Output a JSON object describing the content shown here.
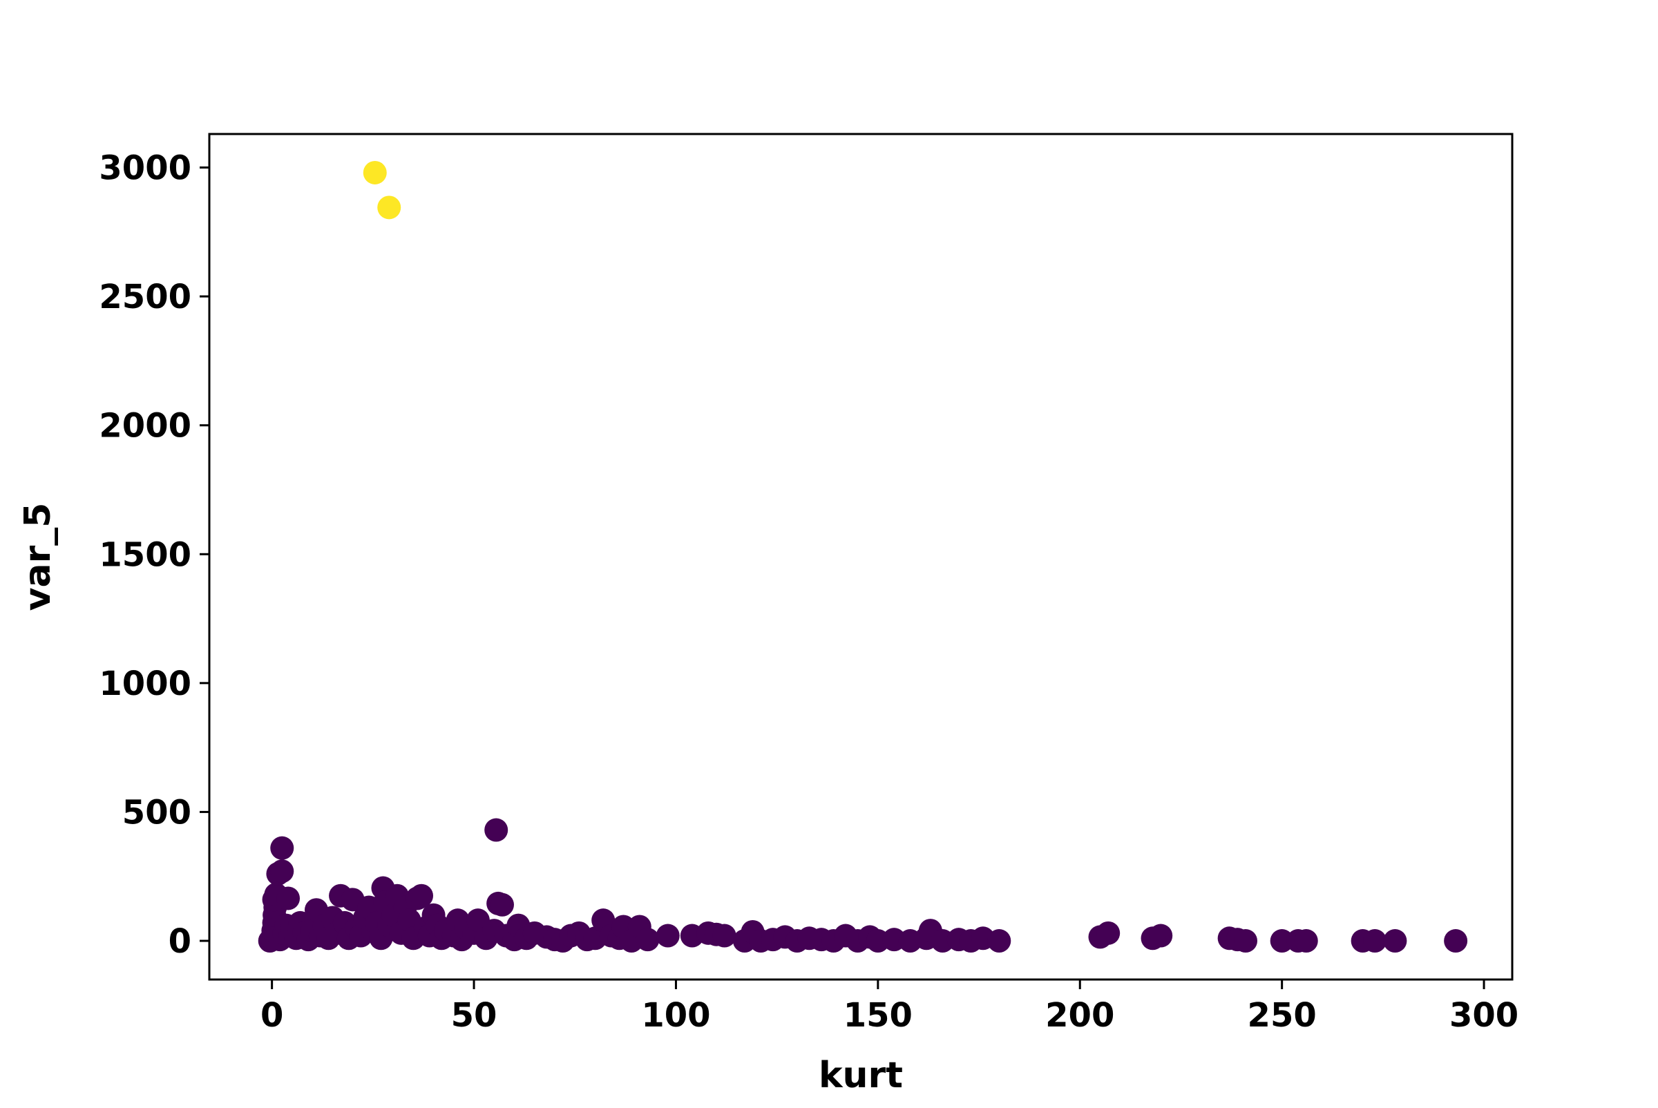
{
  "chart_data": {
    "type": "scatter",
    "title": "",
    "xlabel": "kurt",
    "ylabel": "var_5",
    "xlim": [
      -15.5,
      307
    ],
    "ylim": [
      -150,
      3130
    ],
    "x_ticks": [
      0,
      50,
      100,
      150,
      200,
      250,
      300
    ],
    "y_ticks": [
      0,
      500,
      1000,
      1500,
      2000,
      2500,
      3000
    ],
    "x_tick_labels": [
      "0",
      "50",
      "100",
      "150",
      "200",
      "250",
      "300"
    ],
    "y_tick_labels": [
      "0",
      "500",
      "1000",
      "1500",
      "2000",
      "2500",
      "3000"
    ],
    "grid": false,
    "legend": "none",
    "colors": {
      "cluster_0": "#440154",
      "cluster_1": "#fde725"
    },
    "series": [
      {
        "color_key": "cluster_0",
        "points": [
          [
            -0.5,
            0
          ],
          [
            0,
            10
          ],
          [
            0.3,
            40
          ],
          [
            0.5,
            70
          ],
          [
            0.6,
            100
          ],
          [
            0.8,
            130
          ],
          [
            0.5,
            160
          ],
          [
            1,
            180
          ],
          [
            1.5,
            260
          ],
          [
            2,
            5
          ],
          [
            2.5,
            270
          ],
          [
            2.5,
            360
          ],
          [
            3,
            30
          ],
          [
            3.5,
            60
          ],
          [
            4,
            165
          ],
          [
            4.5,
            20
          ],
          [
            5,
            50
          ],
          [
            6,
            10
          ],
          [
            7,
            70
          ],
          [
            8,
            30
          ],
          [
            9,
            5
          ],
          [
            10,
            40
          ],
          [
            11,
            120
          ],
          [
            12,
            20
          ],
          [
            13,
            60
          ],
          [
            14,
            10
          ],
          [
            15,
            90
          ],
          [
            16,
            30
          ],
          [
            17,
            175
          ],
          [
            18,
            70
          ],
          [
            19,
            10
          ],
          [
            20,
            160
          ],
          [
            21,
            50
          ],
          [
            22,
            20
          ],
          [
            23,
            90
          ],
          [
            24,
            130
          ],
          [
            25,
            40
          ],
          [
            26,
            70
          ],
          [
            27,
            10
          ],
          [
            27.5,
            205
          ],
          [
            28,
            150
          ],
          [
            29,
            60
          ],
          [
            30,
            100
          ],
          [
            31,
            175
          ],
          [
            32,
            30
          ],
          [
            33,
            130
          ],
          [
            34,
            80
          ],
          [
            35,
            10
          ],
          [
            36,
            165
          ],
          [
            37,
            175
          ],
          [
            38,
            50
          ],
          [
            39,
            20
          ],
          [
            40,
            100
          ],
          [
            41,
            60
          ],
          [
            42,
            10
          ],
          [
            43,
            40
          ],
          [
            45,
            20
          ],
          [
            46,
            80
          ],
          [
            47,
            5
          ],
          [
            48,
            50
          ],
          [
            50,
            30
          ],
          [
            51,
            80
          ],
          [
            53,
            10
          ],
          [
            55,
            40
          ],
          [
            55.5,
            430
          ],
          [
            56,
            145
          ],
          [
            57,
            140
          ],
          [
            58,
            20
          ],
          [
            60,
            5
          ],
          [
            61,
            60
          ],
          [
            63,
            10
          ],
          [
            65,
            30
          ],
          [
            68,
            15
          ],
          [
            70,
            5
          ],
          [
            72,
            0
          ],
          [
            74,
            20
          ],
          [
            76,
            30
          ],
          [
            78,
            5
          ],
          [
            80,
            10
          ],
          [
            82,
            80
          ],
          [
            84,
            20
          ],
          [
            86,
            10
          ],
          [
            87,
            55
          ],
          [
            89,
            0
          ],
          [
            91,
            55
          ],
          [
            93,
            5
          ],
          [
            98,
            20
          ],
          [
            104,
            20
          ],
          [
            108,
            30
          ],
          [
            110,
            25
          ],
          [
            112,
            20
          ],
          [
            117,
            0
          ],
          [
            119,
            35
          ],
          [
            121,
            0
          ],
          [
            124,
            5
          ],
          [
            127,
            15
          ],
          [
            130,
            0
          ],
          [
            133,
            10
          ],
          [
            136,
            5
          ],
          [
            139,
            0
          ],
          [
            142,
            20
          ],
          [
            145,
            0
          ],
          [
            148,
            15
          ],
          [
            150,
            0
          ],
          [
            154,
            5
          ],
          [
            158,
            0
          ],
          [
            162,
            10
          ],
          [
            163,
            40
          ],
          [
            166,
            0
          ],
          [
            170,
            5
          ],
          [
            173,
            0
          ],
          [
            176,
            10
          ],
          [
            180,
            0
          ],
          [
            205,
            15
          ],
          [
            207,
            30
          ],
          [
            218,
            10
          ],
          [
            220,
            20
          ],
          [
            237,
            10
          ],
          [
            239,
            5
          ],
          [
            241,
            0
          ],
          [
            250,
            0
          ],
          [
            254,
            0
          ],
          [
            256,
            0
          ],
          [
            270,
            0
          ],
          [
            273,
            0
          ],
          [
            278,
            0
          ],
          [
            293,
            0
          ]
        ]
      },
      {
        "color_key": "cluster_1",
        "points": [
          [
            25.5,
            2980
          ],
          [
            29,
            2845
          ]
        ]
      }
    ]
  }
}
